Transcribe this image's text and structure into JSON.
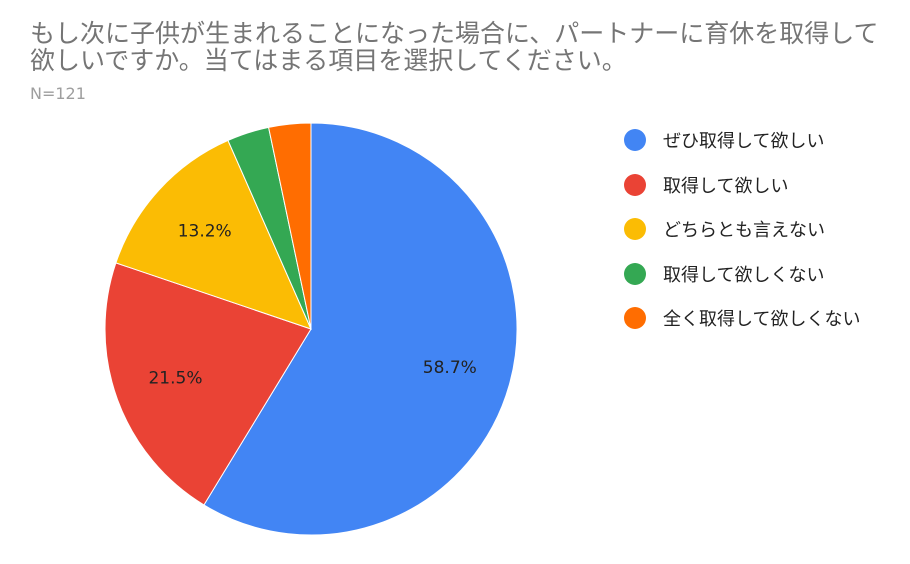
{
  "title": "もし次に子供が生まれることになった場合に、パートナーに育休を取得して欲しいですか。当てはまる項目を選択してください。",
  "subtitle": "N=121",
  "chart_data": {
    "type": "pie",
    "categories": [
      "ぜひ取得して欲しい",
      "取得して欲しい",
      "どちらとも言えない",
      "取得して欲しくない",
      "全く取得して欲しくない"
    ],
    "values": [
      58.7,
      21.5,
      13.2,
      3.3,
      3.3
    ],
    "labels": [
      "58.7%",
      "21.5%",
      "13.2%",
      "",
      ""
    ],
    "colors": [
      "#4285F4",
      "#EA4335",
      "#FBBC04",
      "#34A853",
      "#FF6D01"
    ],
    "legend_position": "right",
    "start": "top",
    "direction": "clockwise"
  }
}
